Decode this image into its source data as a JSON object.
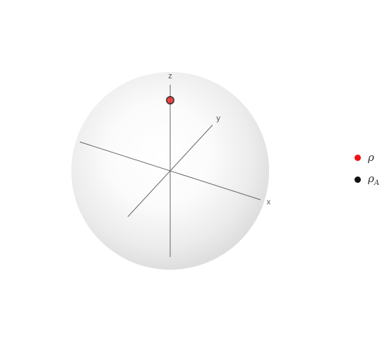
{
  "chart_data": {
    "type": "scatter3d",
    "axes": [
      "x",
      "y",
      "z"
    ],
    "range": [
      -1,
      1
    ],
    "sphere": true,
    "series": [
      {
        "name": "ρ",
        "color": "#ee1111",
        "points": [
          [
            0.0,
            0.0,
            0.82
          ]
        ]
      },
      {
        "name": "ρ_A",
        "name_base": "ρ",
        "name_sub": "A",
        "color": "#111111",
        "points": [
          [
            0.0,
            0.0,
            0.82
          ]
        ]
      }
    ],
    "legend_position": "right"
  }
}
